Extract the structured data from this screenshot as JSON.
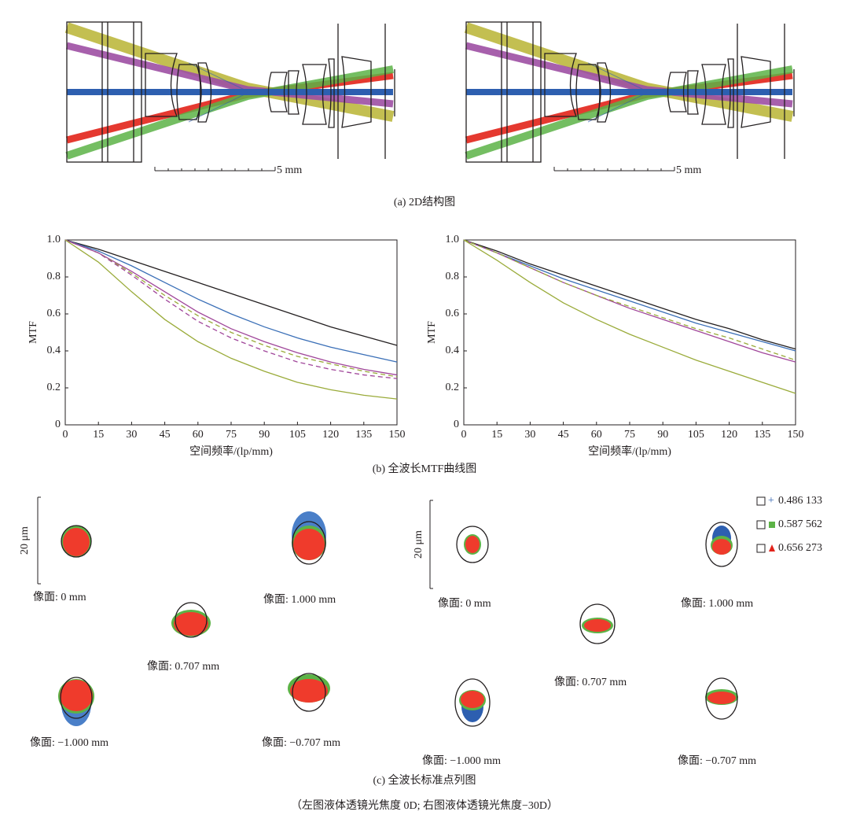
{
  "structure": {
    "scale_labels": [
      "5 mm",
      "5 mm"
    ],
    "caption": "(a) 2D结构图"
  },
  "chart_data": [
    {
      "type": "line",
      "x_label": "空间频率/(lp/mm)",
      "y_label": "MTF",
      "x": [
        0,
        15,
        30,
        45,
        60,
        75,
        90,
        105,
        120,
        135,
        150
      ],
      "xlim": [
        0,
        150
      ],
      "xticks": [
        0,
        15,
        30,
        45,
        60,
        75,
        90,
        105,
        120,
        135,
        150
      ],
      "ylim": [
        0,
        1
      ],
      "yticks": [
        0,
        0.2,
        0.4,
        0.6,
        0.8,
        {
          "value": 1,
          "label": "1.0"
        }
      ],
      "series": [
        {
          "color": "#231f20",
          "dash": false,
          "values": [
            1,
            0.95,
            0.89,
            0.83,
            0.77,
            0.71,
            0.65,
            0.59,
            0.53,
            0.48,
            0.43
          ]
        },
        {
          "color": "#3a6fb7",
          "dash": false,
          "values": [
            1,
            0.94,
            0.86,
            0.77,
            0.68,
            0.6,
            0.53,
            0.47,
            0.42,
            0.38,
            0.34
          ]
        },
        {
          "color": "#a0469a",
          "dash": false,
          "values": [
            1,
            0.93,
            0.83,
            0.72,
            0.61,
            0.52,
            0.45,
            0.39,
            0.34,
            0.3,
            0.27
          ]
        },
        {
          "color": "#9aab3a",
          "dash": true,
          "values": [
            1,
            0.93,
            0.82,
            0.7,
            0.59,
            0.5,
            0.43,
            0.37,
            0.33,
            0.29,
            0.26
          ]
        },
        {
          "color": "#a0469a",
          "dash": true,
          "values": [
            1,
            0.93,
            0.81,
            0.68,
            0.56,
            0.47,
            0.4,
            0.34,
            0.3,
            0.27,
            0.25
          ]
        },
        {
          "color": "#9aab3a",
          "dash": false,
          "values": [
            1,
            0.88,
            0.72,
            0.57,
            0.45,
            0.36,
            0.29,
            0.23,
            0.19,
            0.16,
            0.14
          ]
        }
      ]
    },
    {
      "type": "line",
      "x_label": "空间频率/(lp/mm)",
      "y_label": "MTF",
      "x": [
        0,
        15,
        30,
        45,
        60,
        75,
        90,
        105,
        120,
        135,
        150
      ],
      "xlim": [
        0,
        150
      ],
      "xticks": [
        0,
        15,
        30,
        45,
        60,
        75,
        90,
        105,
        120,
        135,
        150
      ],
      "ylim": [
        0,
        1
      ],
      "yticks": [
        0,
        0.2,
        0.4,
        0.6,
        0.8,
        {
          "value": 1,
          "label": "1.0"
        }
      ],
      "series": [
        {
          "color": "#231f20",
          "dash": false,
          "values": [
            1,
            0.94,
            0.87,
            0.81,
            0.75,
            0.69,
            0.63,
            0.57,
            0.52,
            0.46,
            0.41
          ]
        },
        {
          "color": "#3a6fb7",
          "dash": false,
          "values": [
            1,
            0.93,
            0.86,
            0.79,
            0.73,
            0.67,
            0.61,
            0.55,
            0.5,
            0.45,
            0.4
          ]
        },
        {
          "color": "#a0469a",
          "dash": false,
          "values": [
            1,
            0.93,
            0.85,
            0.77,
            0.7,
            0.63,
            0.57,
            0.51,
            0.45,
            0.39,
            0.34
          ]
        },
        {
          "color": "#9aab3a",
          "dash": true,
          "values": [
            1,
            0.93,
            0.85,
            0.77,
            0.7,
            0.64,
            0.58,
            0.52,
            0.47,
            0.41,
            0.35
          ]
        },
        {
          "color": "#9aab3a",
          "dash": false,
          "values": [
            1,
            0.89,
            0.77,
            0.66,
            0.57,
            0.49,
            0.42,
            0.35,
            0.29,
            0.23,
            0.17
          ]
        }
      ]
    }
  ],
  "mtf_caption": "(b) 全波长MTF曲线图",
  "spots": {
    "scale": [
      "20 μm",
      "20 μm"
    ],
    "left": [
      "像面: 0 mm",
      "像面: 1.000 mm",
      "像面: 0.707 mm",
      "像面: −1.000 mm",
      "像面: −0.707 mm"
    ],
    "right": [
      "像面: 0 mm",
      "像面: 1.000 mm",
      "像面: 0.707 mm",
      "像面: −1.000 mm",
      "像面: −0.707 mm"
    ],
    "legend": [
      "0.486 133",
      "0.587 562",
      "0.656 273"
    ],
    "caption": "(c) 全波长标准点列图"
  },
  "note": "（左图液体透镜光焦度 0D; 右图液体透镜光焦度−30D）"
}
